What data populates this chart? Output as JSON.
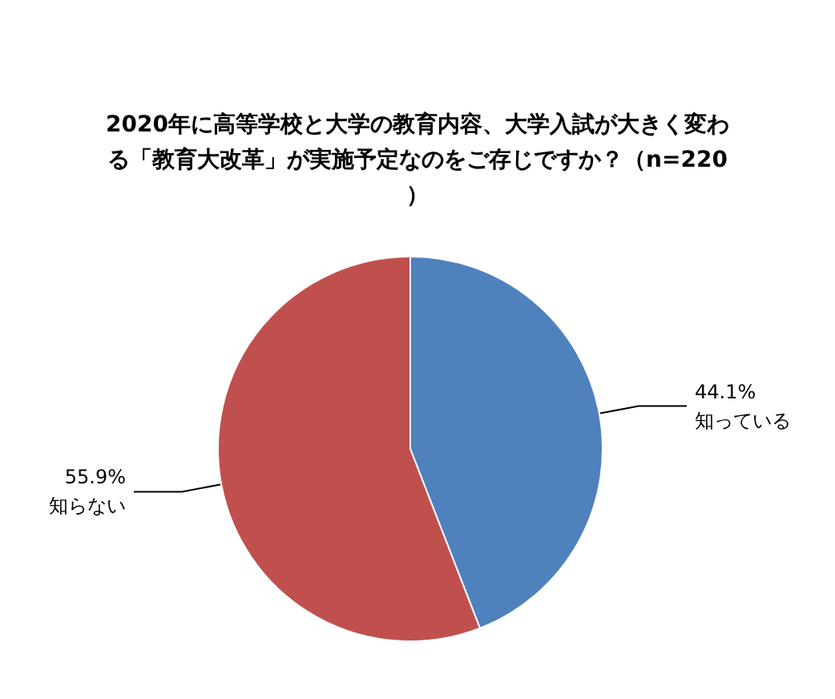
{
  "chart_data": {
    "type": "pie",
    "title": "2020年に高等学校と大学の教育内容、大学入試が大きく変わる「教育大改革」が実施予定なのをご存じですか？（n=220）",
    "categories": [
      "知っている",
      "知らない"
    ],
    "values": [
      44.1,
      55.9
    ],
    "colors": [
      "#4f81bd",
      "#c0504d"
    ],
    "value_labels": [
      "44.1%",
      "55.9%"
    ],
    "legend": false
  }
}
